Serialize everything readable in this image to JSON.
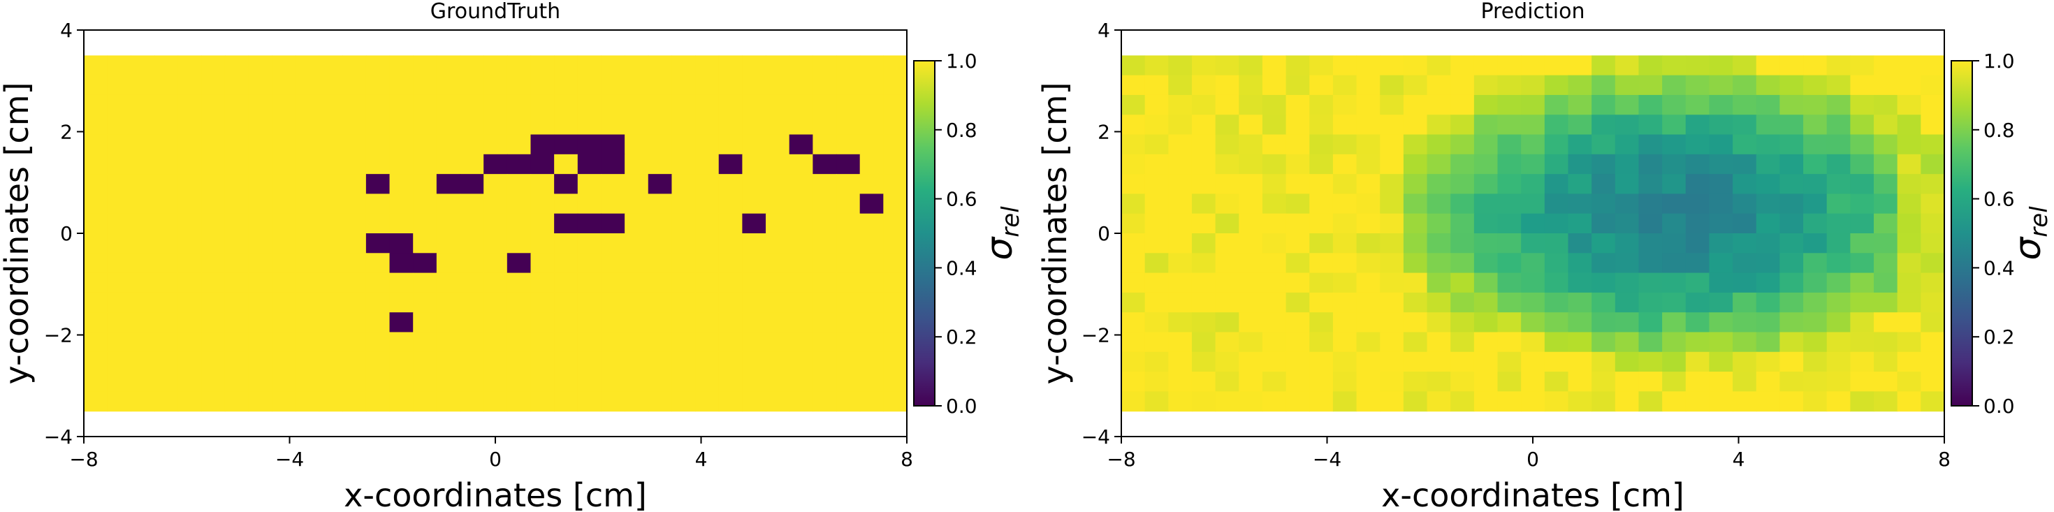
{
  "chart_data": [
    {
      "type": "heatmap",
      "title": "GroundTruth",
      "xlabel": "x-coordinates [cm]",
      "ylabel": "y-coordinates [cm]",
      "xlim": [
        -8,
        8
      ],
      "ylim": [
        -4,
        4
      ],
      "grid": false,
      "x_extent": [
        -8,
        8
      ],
      "y_extent": [
        -3.5,
        3.5
      ],
      "xticks": [
        "−8",
        "−4",
        "0",
        "4",
        "8"
      ],
      "yticks": [
        "−4",
        "−2",
        "0",
        "2",
        "4"
      ],
      "colorbar": {
        "label": "σ_rel",
        "label_base": "σ",
        "label_sub": "rel",
        "range": [
          0,
          1
        ],
        "ticks": [
          "0.0",
          "0.2",
          "0.4",
          "0.6",
          "0.8",
          "1.0"
        ]
      },
      "colormap": "viridis",
      "encoding": "rows listed top (y=+3.5) to bottom (y=-3.5); 1 = yellow (sigma_rel 1.0), 0 = purple (sigma_rel 0.0)",
      "grid_values": [
        "11111111111111111111111111111111111",
        "11111111111111111111111111111111111",
        "11111111111111111111111111111111111",
        "11111111111111111111111111111111111",
        "11111111111111111110000111111101111",
        "11111111111111111000100111101110011",
        "11111111111101100111011101111111111",
        "11111111111111111111111111111111101",
        "11111111111111111111000111110111111",
        "11111111111100111111111111111111111",
        "11111111111110011101111111111111111",
        "11111111111111111111111111111111111",
        "11111111111111111111111111111111111",
        "11111111111110111111111111111111111",
        "11111111111111111111111111111111111",
        "11111111111111111111111111111111111",
        "11111111111111111111111111111111111",
        "11111111111111111111111111111111111"
      ]
    },
    {
      "type": "heatmap",
      "title": "Prediction",
      "xlabel": "x-coordinates [cm]",
      "ylabel": "y-coordinates [cm]",
      "xlim": [
        -8,
        8
      ],
      "ylim": [
        -4,
        4
      ],
      "grid": false,
      "x_extent": [
        -8,
        8
      ],
      "y_extent": [
        -3.5,
        3.5
      ],
      "xticks": [
        "−8",
        "−4",
        "0",
        "4",
        "8"
      ],
      "yticks": [
        "−4",
        "−2",
        "0",
        "2",
        "4"
      ],
      "colorbar": {
        "label": "σ_rel",
        "label_base": "σ",
        "label_sub": "rel",
        "range": [
          0,
          1
        ],
        "ticks": [
          "0.0",
          "0.2",
          "0.4",
          "0.6",
          "0.8",
          "1.0"
        ]
      },
      "colormap": "viridis",
      "value_model": "smooth field approx: 1.0 at edges, minimum about 0.45 near x=3, y=1.5"
    }
  ]
}
